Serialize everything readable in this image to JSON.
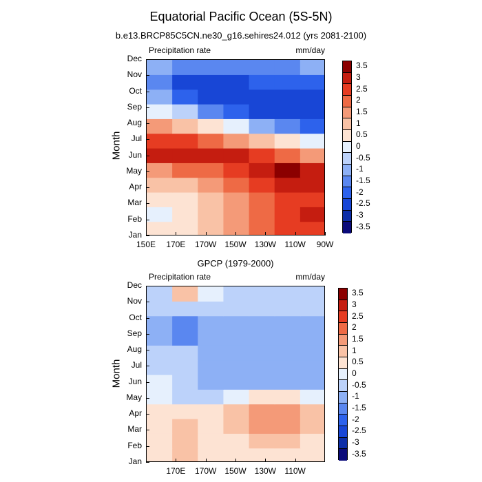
{
  "figure": {
    "title": "Equatorial Pacific Ocean (5S-5N)",
    "subtitle": "b.e13.BRCP85C5CN.ne30_g16.sehires24.012 (yrs 2081-2100)"
  },
  "palette": [
    "#0b0b7a",
    "#0d2ea8",
    "#1846d6",
    "#2d62ec",
    "#5a87f0",
    "#8db0f5",
    "#bcd2fa",
    "#e6f0fd",
    "#fde3d3",
    "#f9c2a6",
    "#f49a78",
    "#ee6a45",
    "#e63c22",
    "#c51d10",
    "#8b0000"
  ],
  "colorbar_labels": [
    "3.5",
    "3",
    "2.5",
    "2",
    "1.5",
    "1",
    "0.5",
    "0",
    "-0.5",
    "-1",
    "-1.5",
    "-2",
    "-2.5",
    "-3",
    "-3.5"
  ],
  "chart_data": [
    {
      "type": "heatmap",
      "name": "model",
      "title": "",
      "left_label": "Precipitation rate",
      "right_label": "mm/day",
      "xlabel": "",
      "ylabel": "Month",
      "x_ticks": [
        "150E",
        "170E",
        "170W",
        "150W",
        "130W",
        "110W",
        "90W"
      ],
      "x_values": [
        150,
        170,
        190,
        210,
        230,
        250,
        270
      ],
      "xlim": [
        150,
        270
      ],
      "y_ticks": [
        "Jan",
        "Feb",
        "Mar",
        "Apr",
        "May",
        "Jun",
        "Jul",
        "Aug",
        "Sep",
        "Oct",
        "Nov",
        "Dec"
      ],
      "levels": [
        -3.5,
        -3,
        -2.5,
        -2,
        -1.5,
        -1,
        -0.5,
        0,
        0.5,
        1,
        1.5,
        2,
        2.5,
        3,
        3.5
      ],
      "grid_lon": [
        150,
        170,
        190,
        210,
        230,
        250,
        270
      ],
      "values": [
        [
          0.5,
          0.5,
          1.0,
          1.5,
          2.0,
          2.5,
          2.5
        ],
        [
          0.0,
          0.5,
          1.0,
          1.5,
          2.0,
          2.5,
          3.0
        ],
        [
          0.5,
          0.5,
          1.0,
          1.5,
          2.0,
          2.5,
          2.5
        ],
        [
          1.0,
          1.0,
          1.5,
          2.0,
          2.5,
          3.0,
          3.0
        ],
        [
          1.5,
          2.0,
          2.0,
          2.5,
          3.0,
          3.5,
          3.0
        ],
        [
          3.0,
          3.0,
          3.0,
          3.0,
          2.5,
          2.0,
          1.5
        ],
        [
          2.5,
          2.5,
          2.0,
          1.5,
          1.0,
          0.5,
          0.0
        ],
        [
          1.5,
          1.0,
          0.5,
          0.0,
          -1.0,
          -1.5,
          -2.0
        ],
        [
          0.0,
          -0.5,
          -1.5,
          -2.0,
          -2.5,
          -2.5,
          -2.5
        ],
        [
          -1.0,
          -2.0,
          -2.5,
          -2.5,
          -2.5,
          -2.5,
          -2.5
        ],
        [
          -1.5,
          -2.5,
          -2.5,
          -2.5,
          -2.0,
          -2.0,
          -2.0
        ],
        [
          -1.0,
          -1.5,
          -1.5,
          -1.5,
          -1.5,
          -1.5,
          -1.0
        ]
      ]
    },
    {
      "type": "heatmap",
      "name": "observations",
      "title": "GPCP (1979-2000)",
      "left_label": "Precipitation rate",
      "right_label": "mm/day",
      "xlabel": "",
      "ylabel": "Month",
      "x_ticks": [
        "170E",
        "170W",
        "150W",
        "130W",
        "110W"
      ],
      "x_values": [
        170,
        190,
        210,
        230,
        250
      ],
      "xlim": [
        150,
        270
      ],
      "y_ticks": [
        "Jan",
        "Feb",
        "Mar",
        "Apr",
        "May",
        "Jun",
        "Jul",
        "Aug",
        "Sep",
        "Oct",
        "Nov",
        "Dec"
      ],
      "levels": [
        -3.5,
        -3,
        -2.5,
        -2,
        -1.5,
        -1,
        -0.5,
        0,
        0.5,
        1,
        1.5,
        2,
        2.5,
        3,
        3.5
      ],
      "grid_lon": [
        150,
        170,
        190,
        210,
        230,
        250,
        270
      ],
      "values": [
        [
          0.5,
          1.0,
          0.5,
          0.5,
          0.5,
          0.5,
          0.5
        ],
        [
          0.5,
          1.0,
          0.5,
          0.5,
          1.0,
          1.0,
          0.5
        ],
        [
          0.5,
          1.0,
          0.5,
          1.0,
          1.5,
          1.5,
          1.0
        ],
        [
          0.5,
          0.5,
          0.5,
          1.0,
          1.5,
          1.5,
          1.0
        ],
        [
          0.0,
          -0.5,
          -0.5,
          0.0,
          0.5,
          0.5,
          0.0
        ],
        [
          0.0,
          -0.5,
          -1.0,
          -1.0,
          -1.0,
          -1.0,
          -1.0
        ],
        [
          -0.5,
          -0.5,
          -1.0,
          -1.0,
          -1.0,
          -1.0,
          -1.0
        ],
        [
          -0.5,
          -0.5,
          -1.0,
          -1.0,
          -1.0,
          -1.0,
          -1.0
        ],
        [
          -1.0,
          -1.5,
          -1.0,
          -1.0,
          -1.0,
          -1.0,
          -1.0
        ],
        [
          -1.0,
          -1.5,
          -1.0,
          -1.0,
          -1.0,
          -1.0,
          -1.0
        ],
        [
          -0.5,
          -0.5,
          -0.5,
          -0.5,
          -0.5,
          -0.5,
          -0.5
        ],
        [
          -0.5,
          1.0,
          0.0,
          -0.5,
          -0.5,
          -0.5,
          -0.5
        ]
      ]
    }
  ]
}
